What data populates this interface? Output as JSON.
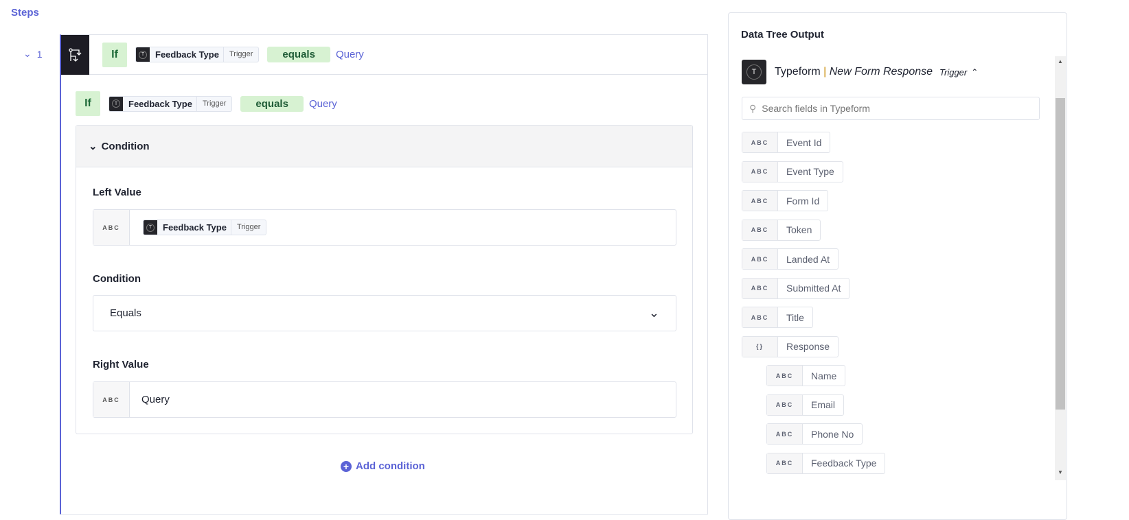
{
  "steps_label": "Steps",
  "step": {
    "number": "1",
    "if": "If",
    "field": "Feedback Type",
    "source": "Trigger",
    "operator": "equals",
    "value": "Query"
  },
  "condition_panel": {
    "title": "Condition",
    "left_label": "Left Value",
    "left_type": "ABC",
    "left_field": "Feedback Type",
    "left_source": "Trigger",
    "cond_label": "Condition",
    "cond_value": "Equals",
    "right_label": "Right Value",
    "right_type": "ABC",
    "right_value": "Query"
  },
  "add_condition": "Add condition",
  "data_tree": {
    "title": "Data Tree Output",
    "app": "Typeform",
    "separator": "|",
    "event": "New Form Response",
    "badge": "Trigger",
    "search_placeholder": "Search fields in Typeform",
    "fields": [
      {
        "type": "ABC",
        "name": "Event Id"
      },
      {
        "type": "ABC",
        "name": "Event Type"
      },
      {
        "type": "ABC",
        "name": "Form Id"
      },
      {
        "type": "ABC",
        "name": "Token"
      },
      {
        "type": "ABC",
        "name": "Landed At"
      },
      {
        "type": "ABC",
        "name": "Submitted At"
      },
      {
        "type": "ABC",
        "name": "Title"
      },
      {
        "type": "{}",
        "name": "Response"
      }
    ],
    "nested": [
      {
        "type": "ABC",
        "name": "Name"
      },
      {
        "type": "ABC",
        "name": "Email"
      },
      {
        "type": "ABC",
        "name": "Phone No"
      },
      {
        "type": "ABC",
        "name": "Feedback Type"
      }
    ]
  }
}
